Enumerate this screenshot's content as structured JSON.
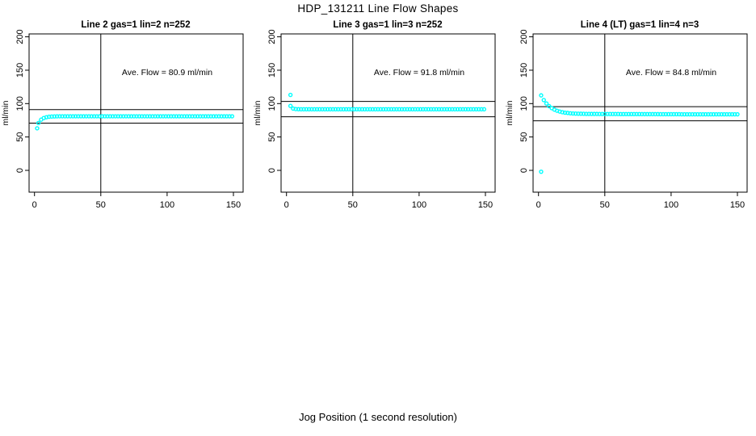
{
  "page": {
    "main_title": "HDP_131211  Line Flow Shapes",
    "x_axis_label": "Jog Position (1 second resolution)",
    "background_color": "#ffffff",
    "marker_color": "#00FFFF",
    "axis_color": "#000000"
  },
  "chart_data": [
    {
      "type": "scatter",
      "title": "Line 2 gas=1 lin=2 n=252",
      "ylabel": "ml/min",
      "annotation": "Ave. Flow =  80.9  ml/min",
      "ave_flow_ml_min": 80.9,
      "x_ticks": [
        0,
        50,
        100,
        150
      ],
      "y_ticks": [
        0,
        50,
        100,
        150,
        200
      ],
      "xlim": [
        0,
        155
      ],
      "ylim": [
        -30,
        205
      ],
      "vline_x": 50,
      "ref_lines_y": [
        91.0,
        70.8
      ],
      "grid": "off",
      "outlier_points": [
        [
          2,
          63
        ]
      ],
      "points": [
        [
          3,
          71
        ],
        [
          5,
          75.9
        ],
        [
          7,
          78.4
        ],
        [
          9,
          79.6
        ],
        [
          11,
          80.3
        ],
        [
          13,
          80.6
        ],
        [
          15,
          80.8
        ],
        [
          17,
          80.9
        ],
        [
          19,
          81
        ],
        [
          21,
          81
        ],
        [
          23,
          81
        ],
        [
          25,
          81
        ],
        [
          27,
          81
        ],
        [
          29,
          81
        ],
        [
          31,
          81
        ],
        [
          33,
          81
        ],
        [
          35,
          81
        ],
        [
          37,
          81
        ],
        [
          39,
          81
        ],
        [
          41,
          81
        ],
        [
          43,
          81
        ],
        [
          45,
          81
        ],
        [
          47,
          81
        ],
        [
          49,
          81
        ],
        [
          51,
          81
        ],
        [
          53,
          81
        ],
        [
          55,
          81
        ],
        [
          57,
          81
        ],
        [
          59,
          81
        ],
        [
          61,
          81
        ],
        [
          63,
          81
        ],
        [
          65,
          81
        ],
        [
          67,
          81
        ],
        [
          69,
          81
        ],
        [
          71,
          81
        ],
        [
          73,
          81
        ],
        [
          75,
          81
        ],
        [
          77,
          81
        ],
        [
          79,
          81
        ],
        [
          81,
          81
        ],
        [
          83,
          81
        ],
        [
          85,
          81
        ],
        [
          87,
          81
        ],
        [
          89,
          81
        ],
        [
          91,
          81
        ],
        [
          93,
          81
        ],
        [
          95,
          81
        ],
        [
          97,
          81
        ],
        [
          99,
          81
        ],
        [
          101,
          81
        ],
        [
          103,
          81
        ],
        [
          105,
          81
        ],
        [
          107,
          81
        ],
        [
          109,
          81
        ],
        [
          111,
          81
        ],
        [
          113,
          81
        ],
        [
          115,
          81
        ],
        [
          117,
          81
        ],
        [
          119,
          81
        ],
        [
          121,
          81
        ],
        [
          123,
          81
        ],
        [
          125,
          81
        ],
        [
          127,
          81
        ],
        [
          129,
          81
        ],
        [
          131,
          81
        ],
        [
          133,
          81
        ],
        [
          135,
          81
        ],
        [
          137,
          81
        ],
        [
          139,
          81
        ],
        [
          141,
          81
        ],
        [
          143,
          81
        ],
        [
          145,
          81
        ],
        [
          147,
          81
        ],
        [
          149,
          81
        ]
      ]
    },
    {
      "type": "scatter",
      "title": "Line 3 gas=1 lin=3 n=252",
      "ylabel": "ml/min",
      "annotation": "Ave. Flow =  91.8  ml/min",
      "ave_flow_ml_min": 91.8,
      "x_ticks": [
        0,
        50,
        100,
        150
      ],
      "y_ticks": [
        0,
        50,
        100,
        150,
        200
      ],
      "xlim": [
        0,
        155
      ],
      "ylim": [
        -30,
        205
      ],
      "vline_x": 50,
      "ref_lines_y": [
        103.3,
        80.3
      ],
      "grid": "off",
      "outlier_points": [
        [
          3,
          113
        ]
      ],
      "points": [
        [
          3,
          96.5
        ],
        [
          5,
          92.5
        ],
        [
          7,
          91.8
        ],
        [
          9,
          91.6
        ],
        [
          11,
          91.5
        ],
        [
          13,
          91.5
        ],
        [
          15,
          91.5
        ],
        [
          17,
          91.5
        ],
        [
          19,
          91.5
        ],
        [
          21,
          91.5
        ],
        [
          23,
          91.5
        ],
        [
          25,
          91.5
        ],
        [
          27,
          91.5
        ],
        [
          29,
          91.5
        ],
        [
          31,
          91.5
        ],
        [
          33,
          91.5
        ],
        [
          35,
          91.5
        ],
        [
          37,
          91.5
        ],
        [
          39,
          91.5
        ],
        [
          41,
          91.5
        ],
        [
          43,
          91.5
        ],
        [
          45,
          91.5
        ],
        [
          47,
          91.5
        ],
        [
          49,
          91.5
        ],
        [
          51,
          91.5
        ],
        [
          53,
          91.5
        ],
        [
          55,
          91.5
        ],
        [
          57,
          91.5
        ],
        [
          59,
          91.5
        ],
        [
          61,
          91.5
        ],
        [
          63,
          91.5
        ],
        [
          65,
          91.5
        ],
        [
          67,
          91.5
        ],
        [
          69,
          91.5
        ],
        [
          71,
          91.5
        ],
        [
          73,
          91.5
        ],
        [
          75,
          91.5
        ],
        [
          77,
          91.5
        ],
        [
          79,
          91.5
        ],
        [
          81,
          91.5
        ],
        [
          83,
          91.5
        ],
        [
          85,
          91.5
        ],
        [
          87,
          91.5
        ],
        [
          89,
          91.5
        ],
        [
          91,
          91.5
        ],
        [
          93,
          91.5
        ],
        [
          95,
          91.5
        ],
        [
          97,
          91.5
        ],
        [
          99,
          91.5
        ],
        [
          101,
          91.5
        ],
        [
          103,
          91.5
        ],
        [
          105,
          91.5
        ],
        [
          107,
          91.5
        ],
        [
          109,
          91.5
        ],
        [
          111,
          91.5
        ],
        [
          113,
          91.5
        ],
        [
          115,
          91.5
        ],
        [
          117,
          91.5
        ],
        [
          119,
          91.5
        ],
        [
          121,
          91.5
        ],
        [
          123,
          91.5
        ],
        [
          125,
          91.5
        ],
        [
          127,
          91.5
        ],
        [
          129,
          91.5
        ],
        [
          131,
          91.5
        ],
        [
          133,
          91.5
        ],
        [
          135,
          91.5
        ],
        [
          137,
          91.5
        ],
        [
          139,
          91.5
        ],
        [
          141,
          91.5
        ],
        [
          143,
          91.5
        ],
        [
          145,
          91.5
        ],
        [
          147,
          91.5
        ],
        [
          149,
          91.5
        ]
      ]
    },
    {
      "type": "scatter",
      "title": "Line 4 (LT) gas=1 lin=4 n=3",
      "ylabel": "ml/min",
      "annotation": "Ave. Flow =  84.8  ml/min",
      "ave_flow_ml_min": 84.8,
      "x_ticks": [
        0,
        50,
        100,
        150
      ],
      "y_ticks": [
        0,
        50,
        100,
        150,
        200
      ],
      "xlim": [
        0,
        155
      ],
      "ylim": [
        -30,
        205
      ],
      "vline_x": 50,
      "ref_lines_y": [
        95.4,
        74.2
      ],
      "grid": "off",
      "outlier_points": [
        [
          2,
          -2
        ]
      ],
      "points": [
        [
          2,
          112.3
        ],
        [
          4,
          105.3
        ],
        [
          6,
          100.1
        ],
        [
          8,
          96.2
        ],
        [
          10,
          93.2
        ],
        [
          12,
          91
        ],
        [
          14,
          89.3
        ],
        [
          16,
          88.1
        ],
        [
          18,
          87.1
        ],
        [
          20,
          86.4
        ],
        [
          22,
          86
        ],
        [
          24,
          85.5
        ],
        [
          26,
          85.2
        ],
        [
          28,
          85
        ],
        [
          30,
          84.9
        ],
        [
          32,
          84.8
        ],
        [
          34,
          84.7
        ],
        [
          36,
          84.6
        ],
        [
          38,
          84.6
        ],
        [
          40,
          84.5
        ],
        [
          42,
          84.5
        ],
        [
          44,
          84.5
        ],
        [
          46,
          84.4
        ],
        [
          48,
          84.4
        ],
        [
          50,
          84.4
        ],
        [
          52,
          84.4
        ],
        [
          54,
          84.4
        ],
        [
          56,
          84.4
        ],
        [
          58,
          84.4
        ],
        [
          60,
          84.4
        ],
        [
          62,
          84.3
        ],
        [
          64,
          84.3
        ],
        [
          66,
          84.3
        ],
        [
          68,
          84.3
        ],
        [
          70,
          84.3
        ],
        [
          72,
          84.3
        ],
        [
          74,
          84.3
        ],
        [
          76,
          84.3
        ],
        [
          78,
          84.2
        ],
        [
          80,
          84.2
        ],
        [
          82,
          84.2
        ],
        [
          84,
          84.2
        ],
        [
          86,
          84.2
        ],
        [
          88,
          84.2
        ],
        [
          90,
          84.2
        ],
        [
          92,
          84.1
        ],
        [
          94,
          84.1
        ],
        [
          96,
          84.1
        ],
        [
          98,
          84.1
        ],
        [
          100,
          84.1
        ],
        [
          102,
          84.1
        ],
        [
          104,
          84.1
        ],
        [
          106,
          84.1
        ],
        [
          108,
          84
        ],
        [
          110,
          84
        ],
        [
          112,
          84
        ],
        [
          114,
          84
        ],
        [
          116,
          84
        ],
        [
          118,
          84
        ],
        [
          120,
          84
        ],
        [
          122,
          84
        ],
        [
          124,
          84
        ],
        [
          126,
          84
        ],
        [
          128,
          84
        ],
        [
          130,
          84
        ],
        [
          132,
          84
        ],
        [
          134,
          84
        ],
        [
          136,
          84
        ],
        [
          138,
          84
        ],
        [
          140,
          84
        ],
        [
          142,
          84
        ],
        [
          144,
          84
        ],
        [
          146,
          84
        ],
        [
          148,
          84
        ],
        [
          150,
          84
        ]
      ]
    }
  ]
}
